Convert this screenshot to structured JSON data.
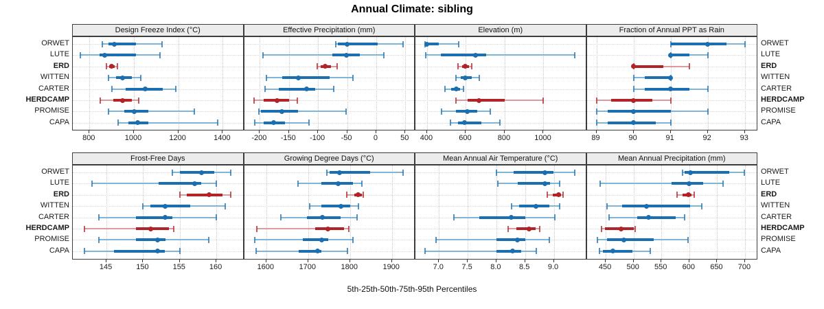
{
  "title": "Annual Climate: sibling",
  "xlabel": "5th-25th-50th-75th-95th Percentiles",
  "sites": [
    "ORWET",
    "LUTE",
    "ERD",
    "WITTEN",
    "CARTER",
    "HERDCAMP",
    "PROMISE",
    "CAPA"
  ],
  "highlighted_sites": [
    "ERD",
    "HERDCAMP"
  ],
  "colors": {
    "blue": "#1b6fb0",
    "blue_light": "#7eb6da",
    "red": "#b12327",
    "red_light": "#dd9a9c",
    "strip_bg": "#ececec",
    "grid": "#c9c9c9"
  },
  "chart_data": [
    {
      "type": "dotplot-percentiles",
      "title": "Design Freeze Index (°C)",
      "row": 0,
      "col": 0,
      "xlim": [
        725,
        1490
      ],
      "ticks": [
        800,
        1000,
        1200,
        1400
      ],
      "tick_labels": [
        "800",
        "1000",
        "1200",
        "1400"
      ],
      "percentile_order": [
        "p5",
        "p25",
        "p50",
        "p75",
        "p95"
      ],
      "series": [
        {
          "site": "ORWET",
          "color": "blue",
          "p": [
            858,
            885,
            912,
            1010,
            1128
          ]
        },
        {
          "site": "LUTE",
          "color": "blue",
          "p": [
            760,
            845,
            868,
            1010,
            1118
          ]
        },
        {
          "site": "ERD",
          "color": "red",
          "p": [
            876,
            889,
            901,
            913,
            926
          ]
        },
        {
          "site": "WITTEN",
          "color": "blue",
          "p": [
            886,
            920,
            950,
            992,
            1032
          ]
        },
        {
          "site": "CARTER",
          "color": "blue",
          "p": [
            900,
            962,
            1052,
            1130,
            1188
          ]
        },
        {
          "site": "HERDCAMP",
          "color": "red",
          "p": [
            850,
            906,
            950,
            992,
            1022
          ]
        },
        {
          "site": "PROMISE",
          "color": "blue",
          "p": [
            886,
            956,
            1002,
            1066,
            1272
          ]
        },
        {
          "site": "CAPA",
          "color": "blue",
          "p": [
            930,
            976,
            1016,
            1066,
            1378
          ]
        }
      ]
    },
    {
      "type": "dotplot-percentiles",
      "title": "Effective Precipitation (mm)",
      "row": 0,
      "col": 1,
      "xlim": [
        -227,
        65
      ],
      "ticks": [
        -200,
        -150,
        -100,
        -50,
        0,
        50
      ],
      "tick_labels": [
        "-200",
        "-150",
        "-100",
        "-50",
        "0",
        "50"
      ],
      "percentile_order": [
        "p5",
        "p25",
        "p50",
        "p75",
        "p95"
      ],
      "series": [
        {
          "site": "ORWET",
          "color": "blue",
          "p": [
            -69,
            -66,
            -50,
            3,
            46
          ]
        },
        {
          "site": "LUTE",
          "color": "blue",
          "p": [
            -195,
            -75,
            -51,
            -28,
            13
          ]
        },
        {
          "site": "ERD",
          "color": "red",
          "p": [
            -101,
            -95,
            -88,
            -78,
            -67
          ]
        },
        {
          "site": "WITTEN",
          "color": "blue",
          "p": [
            -189,
            -162,
            -134,
            -80,
            -40
          ]
        },
        {
          "site": "CARTER",
          "color": "blue",
          "p": [
            -191,
            -167,
            -120,
            -105,
            -73
          ]
        },
        {
          "site": "HERDCAMP",
          "color": "red",
          "p": [
            -210,
            -193,
            -170,
            -150,
            -136
          ]
        },
        {
          "site": "PROMISE",
          "color": "blue",
          "p": [
            -202,
            -198,
            -162,
            -134,
            -52
          ]
        },
        {
          "site": "CAPA",
          "color": "blue",
          "p": [
            -209,
            -193,
            -176,
            -157,
            -115
          ]
        }
      ]
    },
    {
      "type": "dotplot-percentiles",
      "title": "Elevation (m)",
      "row": 0,
      "col": 2,
      "xlim": [
        340,
        1216
      ],
      "ticks": [
        400,
        600,
        800,
        1000
      ],
      "tick_labels": [
        "400",
        "600",
        "800",
        "1000"
      ],
      "percentile_order": [
        "p5",
        "p25",
        "p50",
        "p75",
        "p95"
      ],
      "series": [
        {
          "site": "ORWET",
          "color": "blue",
          "p": [
            389,
            393,
            400,
            460,
            562
          ]
        },
        {
          "site": "LUTE",
          "color": "blue",
          "p": [
            394,
            470,
            651,
            706,
            1160
          ]
        },
        {
          "site": "ERD",
          "color": "red",
          "p": [
            559,
            580,
            596,
            615,
            631
          ]
        },
        {
          "site": "WITTEN",
          "color": "blue",
          "p": [
            549,
            575,
            596,
            630,
            669
          ]
        },
        {
          "site": "CARTER",
          "color": "blue",
          "p": [
            491,
            525,
            549,
            570,
            588
          ]
        },
        {
          "site": "HERDCAMP",
          "color": "red",
          "p": [
            549,
            610,
            669,
            800,
            1000
          ]
        },
        {
          "site": "PROMISE",
          "color": "blue",
          "p": [
            476,
            550,
            607,
            660,
            727
          ]
        },
        {
          "site": "CAPA",
          "color": "blue",
          "p": [
            520,
            560,
            593,
            680,
            775
          ]
        }
      ]
    },
    {
      "type": "dotplot-percentiles",
      "title": "Fraction of Annual PPT as Rain",
      "row": 0,
      "col": 3,
      "xlim": [
        88.74,
        93.32
      ],
      "ticks": [
        89,
        90,
        91,
        92,
        93
      ],
      "tick_labels": [
        "89",
        "90",
        "91",
        "92",
        "93"
      ],
      "percentile_order": [
        "p5",
        "p25",
        "p50",
        "p75",
        "p95"
      ],
      "series": [
        {
          "site": "ORWET",
          "color": "blue",
          "p": [
            91,
            91,
            92,
            92.5,
            93
          ]
        },
        {
          "site": "LUTE",
          "color": "blue",
          "p": [
            91,
            91,
            91,
            91.5,
            92
          ]
        },
        {
          "site": "ERD",
          "color": "red",
          "p": [
            90,
            90,
            90,
            90.8,
            91.5
          ]
        },
        {
          "site": "WITTEN",
          "color": "blue",
          "p": [
            90,
            90.3,
            91,
            91,
            91
          ]
        },
        {
          "site": "CARTER",
          "color": "blue",
          "p": [
            90,
            90.3,
            91,
            91.5,
            92
          ]
        },
        {
          "site": "HERDCAMP",
          "color": "red",
          "p": [
            89,
            89.4,
            90,
            90.5,
            91
          ]
        },
        {
          "site": "PROMISE",
          "color": "blue",
          "p": [
            89,
            89.3,
            90,
            91,
            92
          ]
        },
        {
          "site": "CAPA",
          "color": "blue",
          "p": [
            89,
            89.3,
            90,
            90.6,
            91
          ]
        }
      ]
    },
    {
      "type": "dotplot-percentiles",
      "title": "Frost-Free Days",
      "row": 1,
      "col": 0,
      "xlim": [
        140.4,
        163.6
      ],
      "ticks": [
        145,
        150,
        155,
        160
      ],
      "tick_labels": [
        "145",
        "150",
        "155",
        "160"
      ],
      "percentile_order": [
        "p5",
        "p25",
        "p50",
        "p75",
        "p95"
      ],
      "series": [
        {
          "site": "ORWET",
          "color": "blue",
          "p": [
            154,
            155,
            158,
            159.7,
            162
          ]
        },
        {
          "site": "LUTE",
          "color": "blue",
          "p": [
            143,
            152.1,
            157,
            157.9,
            160
          ]
        },
        {
          "site": "ERD",
          "color": "red",
          "p": [
            155,
            156,
            159,
            160.8,
            162
          ]
        },
        {
          "site": "WITTEN",
          "color": "blue",
          "p": [
            150,
            151,
            153,
            156.4,
            161.2
          ]
        },
        {
          "site": "CARTER",
          "color": "blue",
          "p": [
            144,
            149,
            153,
            154,
            160
          ]
        },
        {
          "site": "HERDCAMP",
          "color": "red",
          "p": [
            142,
            149,
            151,
            153.5,
            154.2
          ]
        },
        {
          "site": "PROMISE",
          "color": "blue",
          "p": [
            144,
            149,
            152,
            153.1,
            159
          ]
        },
        {
          "site": "CAPA",
          "color": "blue",
          "p": [
            142,
            146,
            152,
            153,
            155
          ]
        }
      ]
    },
    {
      "type": "dotplot-percentiles",
      "title": "Growing Degree Days (°C)",
      "row": 1,
      "col": 1,
      "xlim": [
        1547,
        1953
      ],
      "ticks": [
        1600,
        1700,
        1800,
        1900
      ],
      "tick_labels": [
        "1600",
        "1700",
        "1800",
        "1900"
      ],
      "percentile_order": [
        "p5",
        "p25",
        "p50",
        "p75",
        "p95"
      ],
      "series": [
        {
          "site": "ORWET",
          "color": "blue",
          "p": [
            1745,
            1752,
            1775,
            1848,
            1926
          ]
        },
        {
          "site": "LUTE",
          "color": "blue",
          "p": [
            1675,
            1731,
            1772,
            1807,
            1828
          ]
        },
        {
          "site": "ERD",
          "color": "red",
          "p": [
            1792,
            1810,
            1820,
            1828,
            1831
          ]
        },
        {
          "site": "WITTEN",
          "color": "blue",
          "p": [
            1704,
            1731,
            1779,
            1801,
            1820
          ]
        },
        {
          "site": "CARTER",
          "color": "blue",
          "p": [
            1634,
            1697,
            1734,
            1777,
            1817
          ]
        },
        {
          "site": "HERDCAMP",
          "color": "red",
          "p": [
            1578,
            1717,
            1747,
            1785,
            1797
          ]
        },
        {
          "site": "PROMISE",
          "color": "blue",
          "p": [
            1572,
            1687,
            1733,
            1748,
            1807
          ]
        },
        {
          "site": "CAPA",
          "color": "blue",
          "p": [
            1575,
            1678,
            1723,
            1731,
            1794
          ]
        }
      ]
    },
    {
      "type": "dotplot-percentiles",
      "title": "Mean Annual Air Temperature (°C)",
      "row": 1,
      "col": 2,
      "xlim": [
        6.59,
        9.55
      ],
      "ticks": [
        7.0,
        7.5,
        8.0,
        8.5,
        9.0
      ],
      "tick_labels": [
        "7.0",
        "7.5",
        "8.0",
        "8.5",
        "9.0"
      ],
      "percentile_order": [
        "p5",
        "p25",
        "p50",
        "p75",
        "p95"
      ],
      "series": [
        {
          "site": "ORWET",
          "color": "blue",
          "p": [
            8.0,
            8.3,
            8.85,
            9.0,
            9.37
          ]
        },
        {
          "site": "LUTE",
          "color": "blue",
          "p": [
            8.03,
            8.37,
            8.84,
            8.94,
            9.1
          ]
        },
        {
          "site": "ERD",
          "color": "red",
          "p": [
            8.89,
            8.98,
            9.08,
            9.12,
            9.16
          ]
        },
        {
          "site": "WITTEN",
          "color": "blue",
          "p": [
            8.26,
            8.4,
            8.69,
            8.92,
            9.1
          ]
        },
        {
          "site": "CARTER",
          "color": "blue",
          "p": [
            7.26,
            7.7,
            8.26,
            8.5,
            9.02
          ]
        },
        {
          "site": "HERDCAMP",
          "color": "red",
          "p": [
            8.2,
            8.35,
            8.57,
            8.68,
            8.75
          ]
        },
        {
          "site": "PROMISE",
          "color": "blue",
          "p": [
            6.95,
            8.0,
            8.37,
            8.5,
            8.92
          ]
        },
        {
          "site": "CAPA",
          "color": "blue",
          "p": [
            6.76,
            8.0,
            8.28,
            8.43,
            8.7
          ]
        }
      ]
    },
    {
      "type": "dotplot-percentiles",
      "title": "Mean Annual Precipitation (mm)",
      "row": 1,
      "col": 3,
      "xlim": [
        416,
        721
      ],
      "ticks": [
        450,
        500,
        550,
        600,
        650,
        700
      ],
      "tick_labels": [
        "450",
        "500",
        "550",
        "600",
        "650",
        "700"
      ],
      "percentile_order": [
        "p5",
        "p25",
        "p50",
        "p75",
        "p95"
      ],
      "series": [
        {
          "site": "ORWET",
          "color": "blue",
          "p": [
            588,
            592,
            602,
            672,
            699
          ]
        },
        {
          "site": "LUTE",
          "color": "blue",
          "p": [
            440,
            568,
            599,
            625,
            661
          ]
        },
        {
          "site": "ERD",
          "color": "red",
          "p": [
            578,
            588,
            598,
            604,
            609
          ]
        },
        {
          "site": "WITTEN",
          "color": "blue",
          "p": [
            452,
            479,
            523,
            601,
            622
          ]
        },
        {
          "site": "CARTER",
          "color": "blue",
          "p": [
            456,
            506,
            527,
            576,
            591
          ]
        },
        {
          "site": "HERDCAMP",
          "color": "red",
          "p": [
            442,
            449,
            478,
            500,
            503
          ]
        },
        {
          "site": "PROMISE",
          "color": "blue",
          "p": [
            435,
            452,
            483,
            536,
            598
          ]
        },
        {
          "site": "CAPA",
          "color": "blue",
          "p": [
            439,
            445,
            463,
            498,
            530
          ]
        }
      ]
    }
  ]
}
